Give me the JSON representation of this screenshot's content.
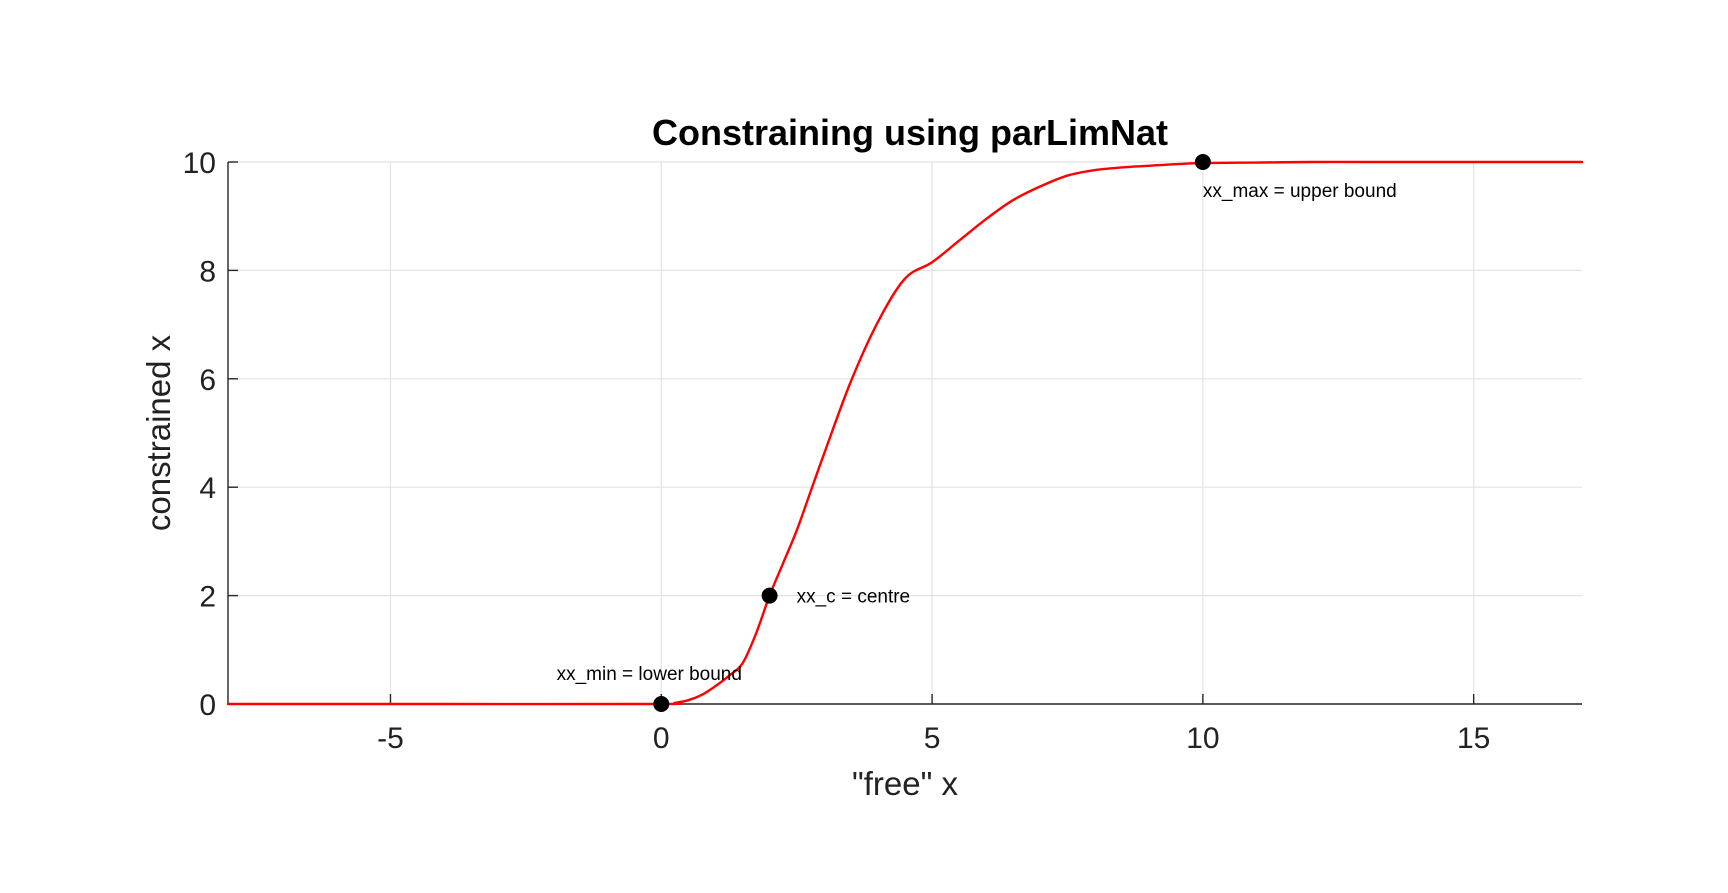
{
  "chart_data": {
    "type": "line",
    "title": "Constraining using parLimNat",
    "xlabel": "\"free\" x",
    "ylabel": "constrained x",
    "xlim": [
      -8,
      17
    ],
    "ylim": [
      0,
      10
    ],
    "x_ticks": [
      -5,
      0,
      5,
      10,
      15
    ],
    "y_ticks": [
      0,
      2,
      4,
      6,
      8,
      10
    ],
    "x_tick_labels": [
      "-5",
      "0",
      "5",
      "10",
      "15"
    ],
    "y_tick_labels": [
      "0",
      "2",
      "4",
      "6",
      "8",
      "10"
    ],
    "grid": true,
    "series": [
      {
        "color": "#ff0000",
        "x": [
          -8,
          -4,
          0,
          0.25,
          0.5,
          0.75,
          1.0,
          1.25,
          1.5,
          1.75,
          2.0,
          2.25,
          2.5,
          2.75,
          3.0,
          3.5,
          4.0,
          4.5,
          5.0,
          5.5,
          6.0,
          6.5,
          7.0,
          7.5,
          8.0,
          8.5,
          9.0,
          9.5,
          10.0,
          11.0,
          12.0,
          13.0,
          14.0,
          15.0,
          16.0,
          17.0
        ],
        "y": [
          0,
          0,
          0,
          0.02,
          0.07,
          0.17,
          0.33,
          0.52,
          0.75,
          1.3,
          2.0,
          2.6,
          3.2,
          3.9,
          4.6,
          5.95,
          7.05,
          7.85,
          8.15,
          8.55,
          8.95,
          9.3,
          9.55,
          9.75,
          9.85,
          9.9,
          9.93,
          9.96,
          9.98,
          9.99,
          10.0,
          10.0,
          10.0,
          10.0,
          10.0,
          10.0
        ]
      }
    ],
    "markers": [
      {
        "x": 0,
        "y": 0,
        "color": "#000000"
      },
      {
        "x": 2,
        "y": 2,
        "color": "#000000"
      },
      {
        "x": 10,
        "y": 10,
        "color": "#000000"
      }
    ],
    "annotations": [
      {
        "text": "xx_min = lower bound",
        "x": 0,
        "y": 0,
        "anchor": "above-centered"
      },
      {
        "text": "xx_c = centre",
        "x": 2,
        "y": 2,
        "anchor": "right"
      },
      {
        "text": "xx_max = upper bound",
        "x": 10,
        "y": 10,
        "anchor": "below-right"
      }
    ]
  }
}
